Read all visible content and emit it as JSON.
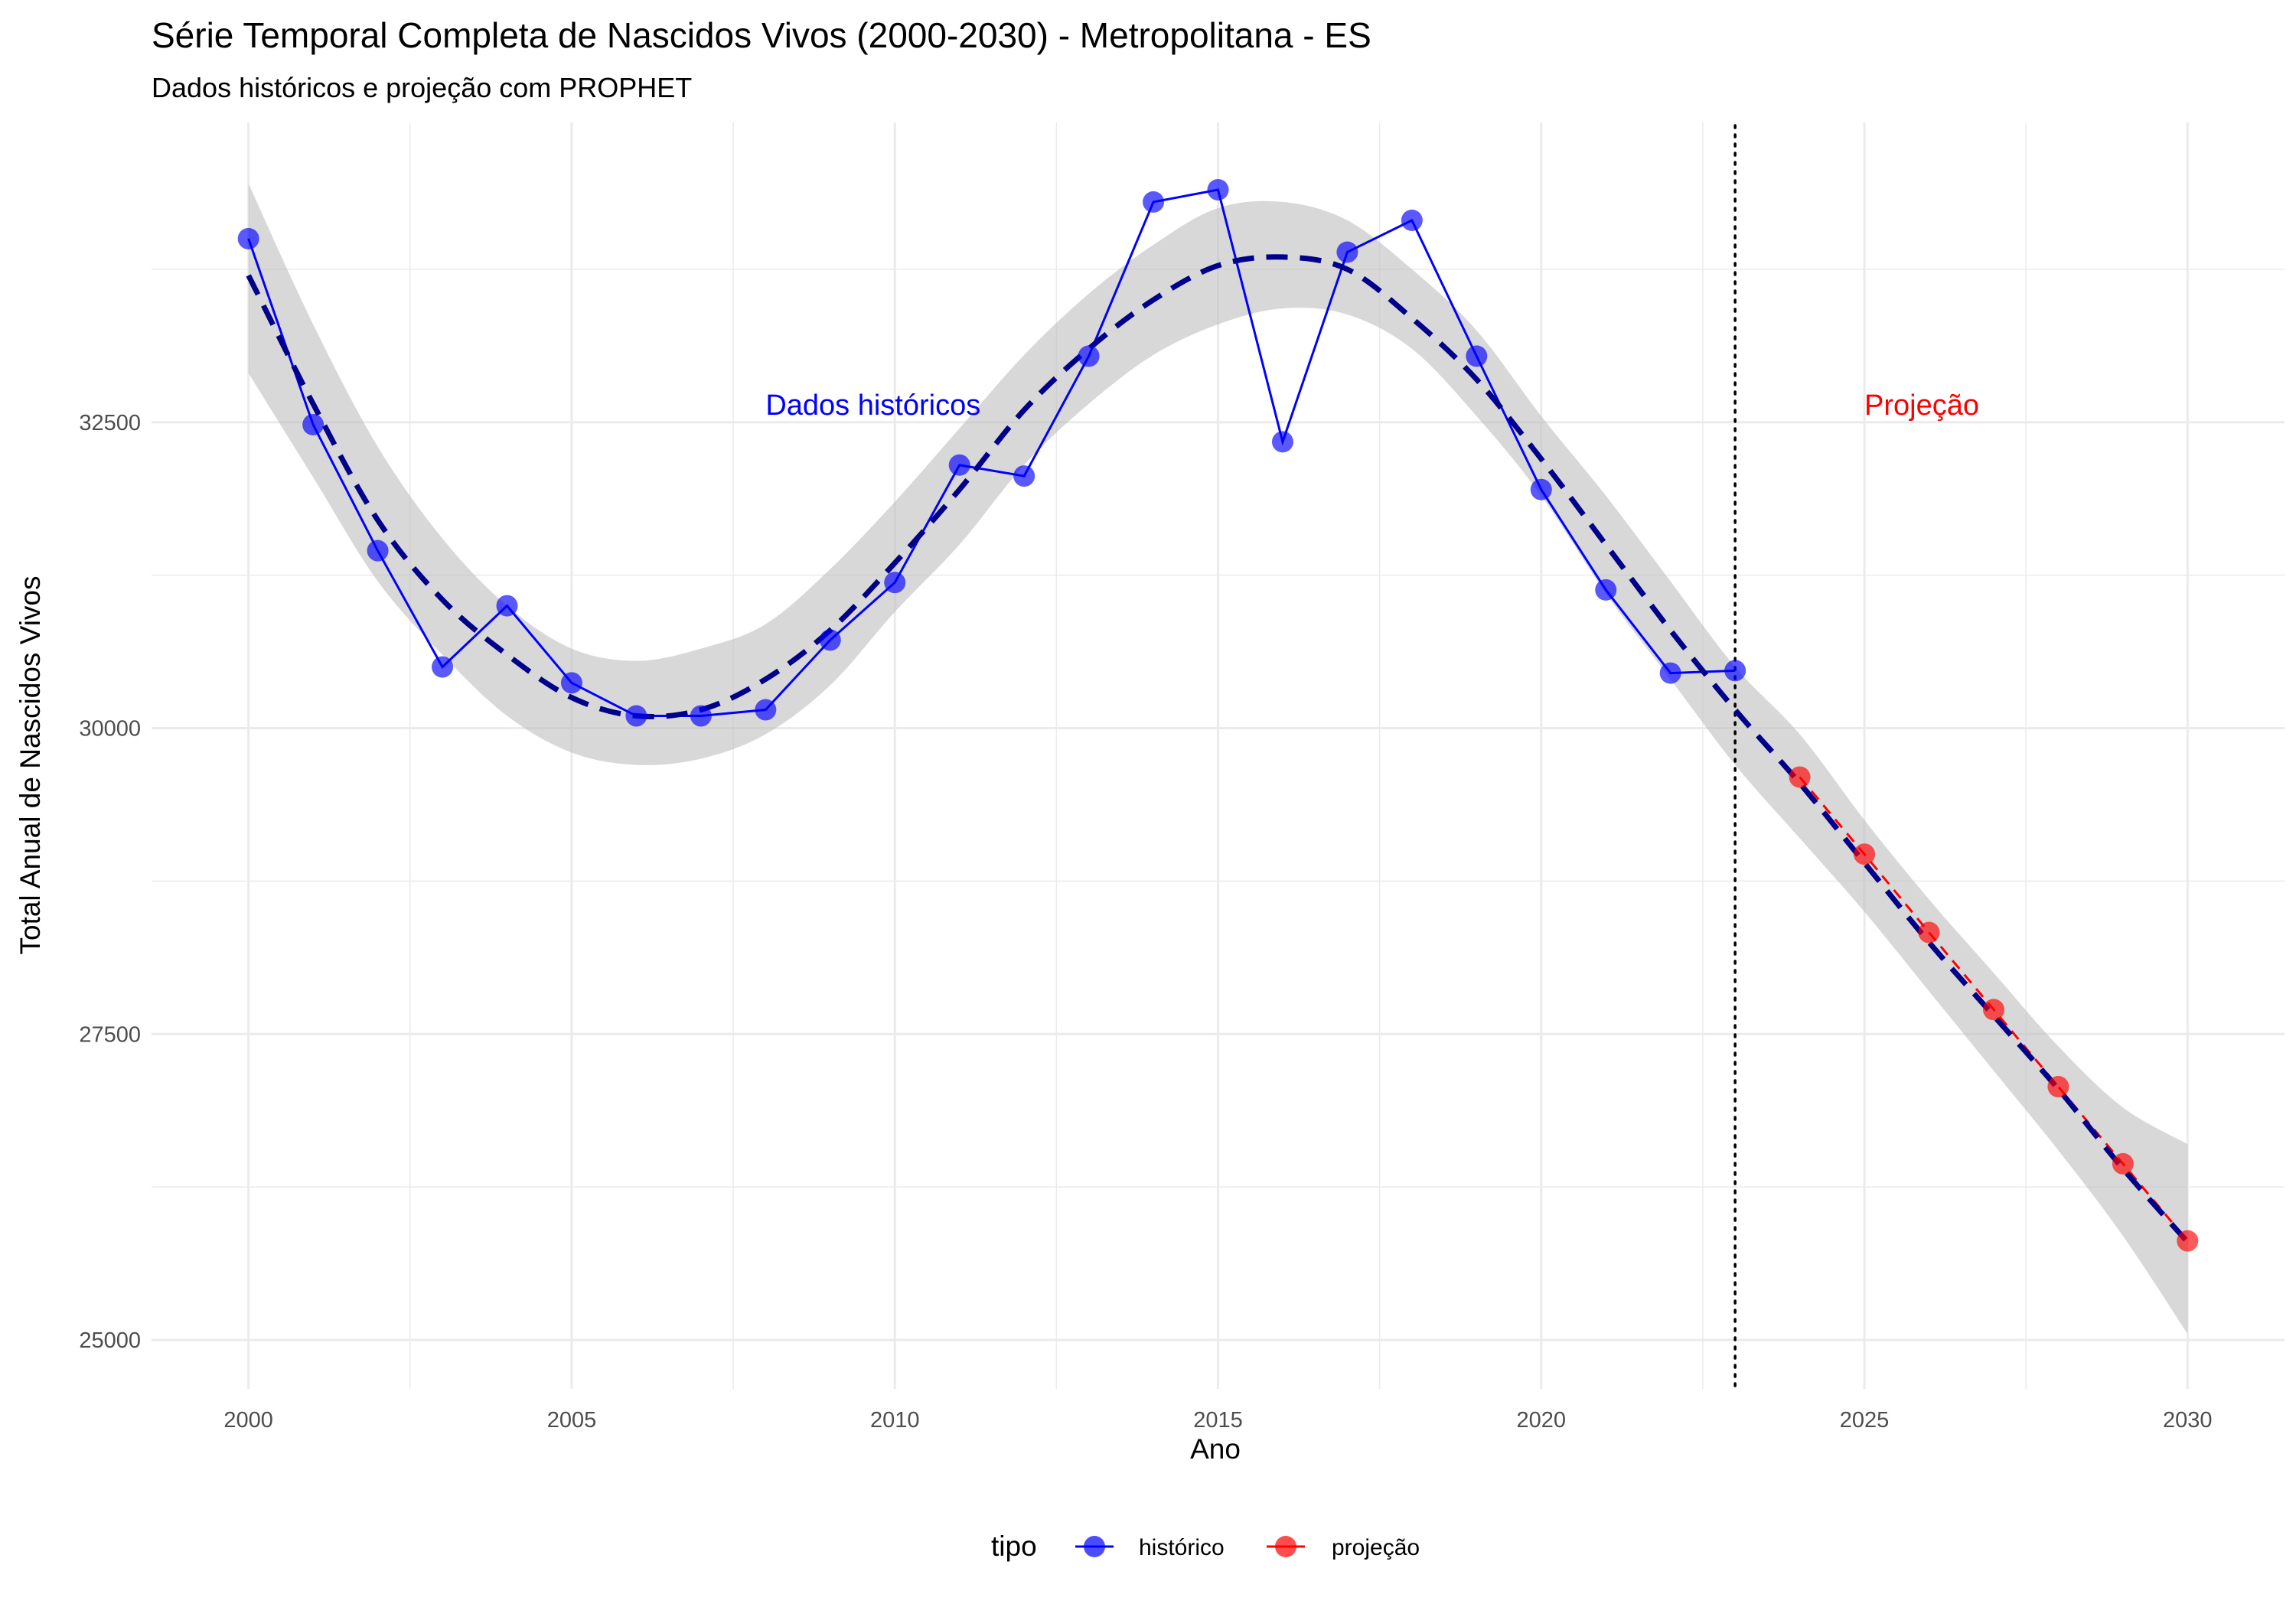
{
  "chart_data": {
    "type": "line",
    "title": "Série Temporal Completa de Nascidos Vivos (2000-2030) -  Metropolitana - ES",
    "subtitle": "Dados históricos e projeção com PROPHET",
    "xlabel": "Ano",
    "ylabel": "Total Anual de Nascidos Vivos",
    "xlim": [
      1998.5,
      2031.5
    ],
    "ylim": [
      24600,
      34950
    ],
    "xticks": [
      2000,
      2005,
      2010,
      2015,
      2020,
      2025,
      2030
    ],
    "xtick_labels": [
      "2000",
      "2005",
      "2010",
      "2015",
      "2020",
      "2025",
      "2030"
    ],
    "yticks": [
      25000,
      27500,
      30000,
      32500
    ],
    "ytick_labels": [
      "25000",
      "27500",
      "30000",
      "32500"
    ],
    "grid": true,
    "legend": {
      "title": "tipo",
      "position": "bottom",
      "entries": [
        "histórico",
        "projeção"
      ]
    },
    "colors": {
      "historico": "#0000ff",
      "projecao": "#ff0000",
      "trend": "#00008b",
      "band": "#bebebe",
      "vline": "#000000"
    },
    "series": [
      {
        "name": "histórico",
        "x": [
          2000,
          2001,
          2002,
          2003,
          2004,
          2005,
          2006,
          2007,
          2008,
          2009,
          2010,
          2011,
          2012,
          2013,
          2014,
          2015,
          2016,
          2017,
          2018,
          2019,
          2020,
          2021,
          2022,
          2023
        ],
        "y": [
          34000,
          32480,
          31450,
          30500,
          31000,
          30370,
          30100,
          30100,
          30150,
          30720,
          31190,
          32150,
          32060,
          33040,
          34300,
          34400,
          32340,
          33890,
          34150,
          33040,
          31950,
          31130,
          30450,
          30470
        ]
      },
      {
        "name": "projeção",
        "x": [
          2024,
          2025,
          2026,
          2027,
          2028,
          2029,
          2030
        ],
        "y": [
          29600,
          28970,
          28330,
          27700,
          27070,
          26440,
          25810
        ]
      },
      {
        "name": "",
        "kind": "trend",
        "x": [
          2000,
          2001,
          2002,
          2003,
          2004,
          2005,
          2006,
          2007,
          2008,
          2009,
          2010,
          2011,
          2012,
          2013,
          2014,
          2015,
          2016,
          2017,
          2018,
          2019,
          2020,
          2021,
          2022,
          2023,
          2024,
          2025,
          2026,
          2027,
          2028,
          2029,
          2030
        ],
        "y": [
          33700,
          32650,
          31700,
          31050,
          30600,
          30250,
          30100,
          30150,
          30400,
          30800,
          31350,
          31950,
          32600,
          33100,
          33500,
          33780,
          33850,
          33750,
          33350,
          32850,
          32200,
          31500,
          30800,
          30150,
          29550,
          28900,
          28250,
          27650,
          27050,
          26400,
          25800
        ],
        "lower": [
          32900,
          32050,
          31200,
          30600,
          30100,
          29800,
          29700,
          29750,
          29950,
          30350,
          30950,
          31500,
          32150,
          32650,
          33050,
          33300,
          33430,
          33380,
          33100,
          32550,
          31900,
          31100,
          30400,
          29700,
          29100,
          28500,
          27850,
          27200,
          26550,
          25850,
          25050
        ],
        "upper": [
          34450,
          33300,
          32300,
          31550,
          31000,
          30650,
          30550,
          30650,
          30850,
          31300,
          31850,
          32450,
          33050,
          33550,
          33950,
          34250,
          34300,
          34150,
          33750,
          33250,
          32550,
          31900,
          31200,
          30500,
          29950,
          29250,
          28600,
          28000,
          27400,
          26900,
          26600
        ]
      }
    ],
    "vline_x": 2023,
    "annotations": [
      {
        "text": "Dados históricos",
        "x": 2008,
        "y": 32650,
        "color": "#0000ff"
      },
      {
        "text": "Projeção",
        "x": 2025,
        "y": 32650,
        "color": "#ff0000"
      }
    ]
  }
}
